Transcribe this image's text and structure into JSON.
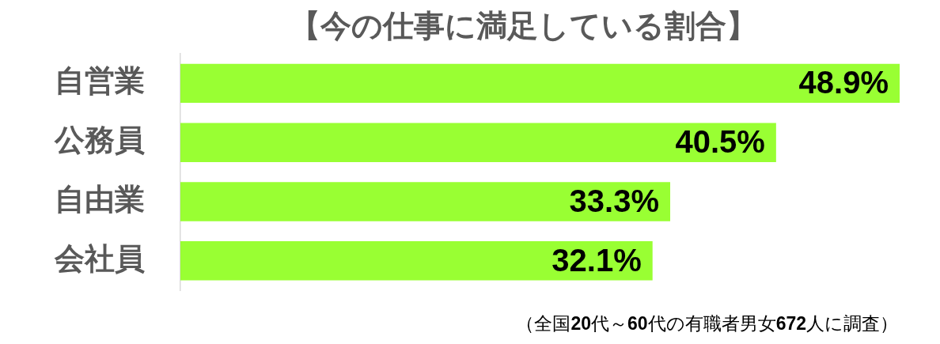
{
  "chart_data": {
    "type": "bar",
    "orientation": "horizontal",
    "title": "【今の仕事に満足している割合】",
    "categories": [
      "自営業",
      "公務員",
      "自由業",
      "会社員"
    ],
    "values": [
      48.9,
      40.5,
      33.3,
      32.1
    ],
    "value_labels": [
      "48.9%",
      "40.5%",
      "33.3%",
      "32.1%"
    ],
    "color": "#99ff33",
    "tick_labels": "y",
    "annotations": [
      "（全国20代～60代の有職者男女672人に調査）"
    ]
  }
}
